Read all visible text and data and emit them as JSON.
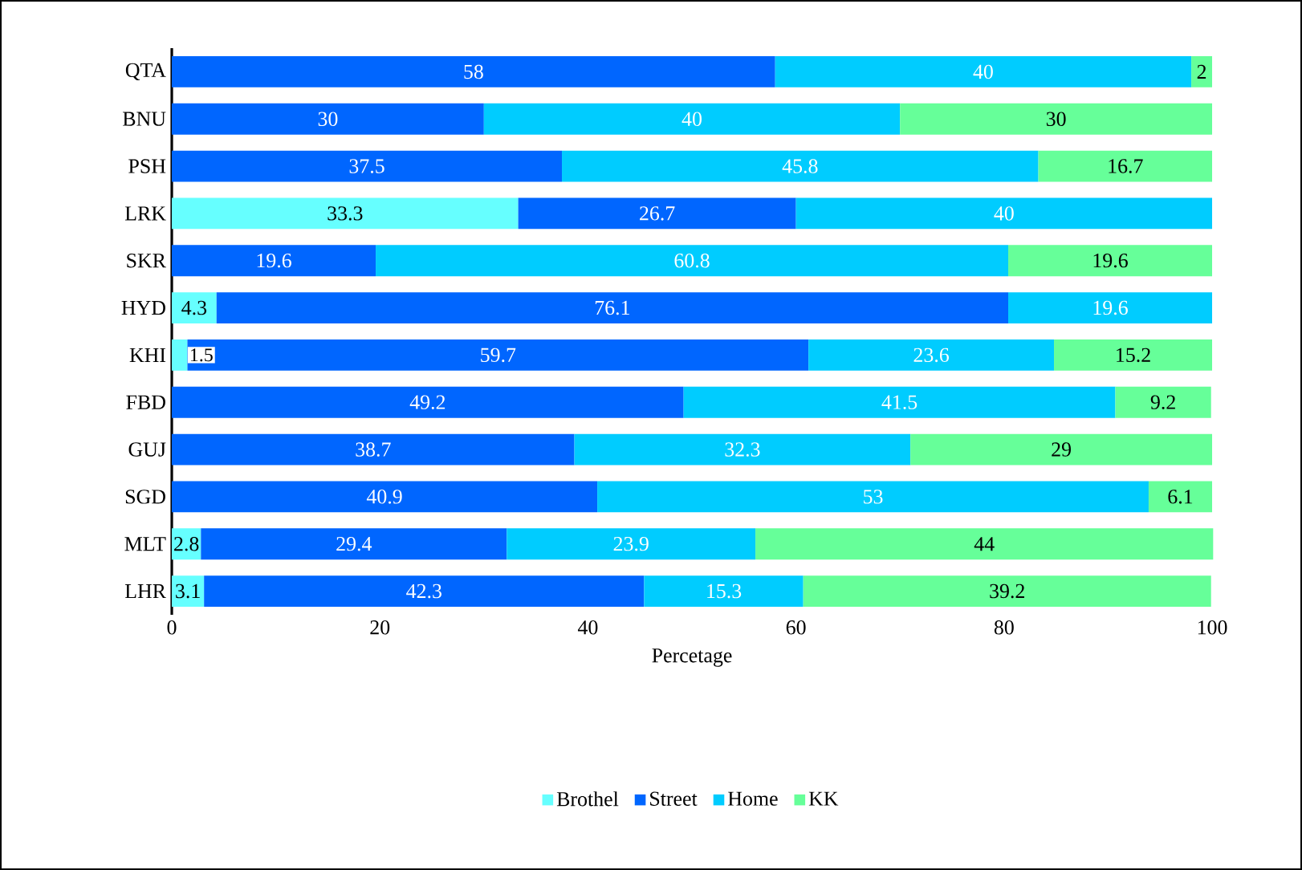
{
  "chart_data": {
    "type": "bar",
    "orientation": "horizontal",
    "stacked": true,
    "xlabel": "Percetage",
    "categories": [
      "QTA",
      "BNU",
      "PSH",
      "LRK",
      "SKR",
      "HYD",
      "KHI",
      "FBD",
      "GUJ",
      "SGD",
      "MLT",
      "LHR"
    ],
    "series": [
      {
        "name": "Brothel",
        "color": "#66ffff",
        "values": [
          null,
          null,
          null,
          33.3,
          null,
          4.3,
          1.5,
          null,
          null,
          null,
          2.8,
          3.1
        ]
      },
      {
        "name": "Street",
        "color": "#0066ff",
        "values": [
          58,
          30,
          37.5,
          26.7,
          19.6,
          76.1,
          59.7,
          49.2,
          38.7,
          40.9,
          29.4,
          42.3
        ]
      },
      {
        "name": "Home",
        "color": "#00ccff",
        "values": [
          40,
          40,
          45.8,
          40,
          60.8,
          19.6,
          23.6,
          41.5,
          32.3,
          53,
          23.9,
          15.3
        ]
      },
      {
        "name": "KK",
        "color": "#66ff99",
        "values": [
          2,
          30,
          16.7,
          null,
          19.6,
          null,
          15.2,
          9.2,
          29,
          6.1,
          44,
          39.2
        ]
      }
    ],
    "xlim": [
      0,
      100
    ],
    "xticks": [
      0,
      20,
      40,
      60,
      80,
      100
    ],
    "data_labels": true,
    "legend": "bottom",
    "grid": false
  }
}
